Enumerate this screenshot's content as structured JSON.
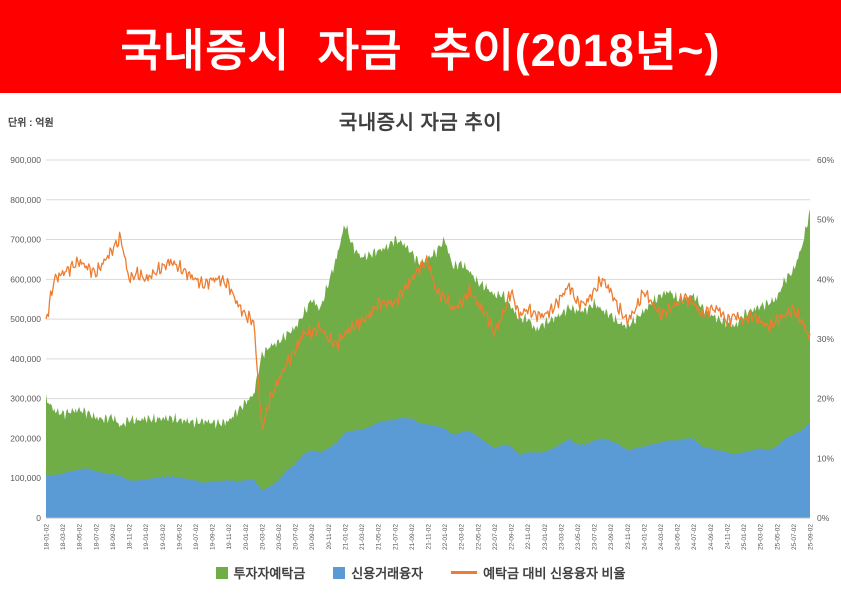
{
  "banner": {
    "title": "국내증시 자금 추이(2018년~)",
    "bg_color": "#fe0000",
    "text_color": "#ffffff"
  },
  "chart": {
    "title": "국내증시 자금 추이",
    "unit_label": "단위 : 억원"
  },
  "legend": [
    {
      "label": "투자자예탁금",
      "color": "#70ad47",
      "type": "area"
    },
    {
      "label": "신용거래융자",
      "color": "#5b9bd5",
      "type": "area"
    },
    {
      "label": "예탁금 대비 신용융자 비율",
      "color": "#ed7d31",
      "type": "line"
    }
  ],
  "chart_data": {
    "type": "area",
    "title": "국내증시 자금 추이",
    "unit": "억원",
    "x_start": "2018-01",
    "x_end": "2025-09",
    "x_freq": "monthly",
    "x_points": 93,
    "x_tick_labels": [
      "18-01-02",
      "18-03-02",
      "18-05-02",
      "18-07-02",
      "18-09-02",
      "18-11-02",
      "19-01-02",
      "19-03-02",
      "19-05-02",
      "19-07-02",
      "19-09-02",
      "19-11-02",
      "20-01-02",
      "20-03-02",
      "20-05-02",
      "20-07-02",
      "20-09-02",
      "20-11-02",
      "21-01-02",
      "21-03-02",
      "21-05-02",
      "21-07-02",
      "21-09-02",
      "21-11-02",
      "22-01-02",
      "22-03-02",
      "22-05-02",
      "22-07-02",
      "22-09-02",
      "22-11-02",
      "23-01-02",
      "23-03-02",
      "23-05-02",
      "23-07-02",
      "23-09-02",
      "23-11-02",
      "24-01-02",
      "24-03-02",
      "24-05-02",
      "24-07-02",
      "24-09-02",
      "24-11-02",
      "25-01-02",
      "25-03-02",
      "25-05-02",
      "25-07-02",
      "25-09-02"
    ],
    "left_axis": {
      "min": 0,
      "max": 900000,
      "tick_labels": [
        "0",
        "100,000",
        "200,000",
        "300,000",
        "400,000",
        "500,000",
        "600,000",
        "700,000",
        "800,000",
        "900,000"
      ]
    },
    "right_axis": {
      "min": 0,
      "max": 60,
      "tick_labels": [
        "0%",
        "10%",
        "20%",
        "30%",
        "40%",
        "50%",
        "60%"
      ]
    },
    "grid": true,
    "legend_position": "bottom",
    "series": [
      {
        "name": "투자자예탁금",
        "type": "area",
        "axis": "left",
        "color": "#70ad47",
        "values": [
          300000,
          270000,
          262000,
          268000,
          272000,
          265000,
          252000,
          248000,
          255000,
          230000,
          248000,
          245000,
          250000,
          248000,
          250000,
          252000,
          246000,
          244000,
          240000,
          244000,
          240000,
          238000,
          244000,
          268000,
          290000,
          310000,
          410000,
          432000,
          442000,
          462000,
          478000,
          512000,
          550000,
          524000,
          590000,
          655000,
          740000,
          680000,
          655000,
          662000,
          672000,
          680000,
          700000,
          690000,
          668000,
          640000,
          652000,
          670000,
          700000,
          632000,
          640000,
          620000,
          592000,
          580000,
          560000,
          562000,
          532000,
          500000,
          502000,
          472000,
          490000,
          500000,
          512000,
          530000,
          520000,
          522000,
          540000,
          522000,
          510000,
          490000,
          482000,
          500000,
          520000,
          542000,
          560000,
          570000,
          552000,
          550000,
          560000,
          530000,
          512000,
          500000,
          490000,
          482000,
          512000,
          522000,
          532000,
          540000,
          552000,
          600000,
          622000,
          680000,
          772000
        ]
      },
      {
        "name": "신용거래융자",
        "type": "area",
        "axis": "left",
        "color": "#5b9bd5",
        "values": [
          105000,
          108000,
          112000,
          118000,
          122000,
          125000,
          118000,
          112000,
          110000,
          106000,
          94000,
          94000,
          97000,
          100000,
          103000,
          105000,
          102000,
          98000,
          95000,
          88000,
          92000,
          93000,
          95000,
          92000,
          95000,
          98000,
          70000,
          80000,
          95000,
          120000,
          135000,
          160000,
          170000,
          165000,
          175000,
          190000,
          215000,
          220000,
          222000,
          230000,
          240000,
          245000,
          248000,
          252000,
          250000,
          238000,
          235000,
          232000,
          225000,
          210000,
          215000,
          220000,
          205000,
          190000,
          175000,
          185000,
          180000,
          160000,
          165000,
          165000,
          165000,
          175000,
          185000,
          200000,
          185000,
          185000,
          195000,
          200000,
          195000,
          185000,
          170000,
          175000,
          180000,
          185000,
          190000,
          195000,
          195000,
          200000,
          200000,
          180000,
          175000,
          170000,
          165000,
          160000,
          165000,
          170000,
          175000,
          170000,
          180000,
          200000,
          210000,
          220000,
          240000
        ]
      },
      {
        "name": "예탁금 대비 신용융자 비율",
        "type": "line",
        "axis": "right",
        "color": "#ed7d31",
        "values": [
          33,
          40,
          41,
          42,
          43,
          42,
          41,
          43,
          45,
          47,
          40,
          41,
          40,
          41,
          42,
          43,
          42,
          41,
          40,
          39,
          40,
          40,
          39,
          36,
          34,
          33,
          15,
          20,
          23,
          26,
          28,
          31,
          31,
          32,
          30,
          29,
          31,
          32,
          33,
          34,
          36,
          36,
          36,
          38,
          40,
          42,
          43,
          38,
          37,
          35,
          36,
          38,
          36,
          34,
          31,
          34,
          38,
          34,
          35,
          34,
          34,
          35,
          37,
          39,
          36,
          36,
          38,
          40,
          38,
          35,
          33,
          35,
          38,
          36,
          34,
          35,
          36,
          37,
          36,
          34,
          35,
          35,
          33,
          34,
          33,
          34,
          33,
          32,
          33,
          34,
          35,
          33,
          30
        ]
      }
    ]
  }
}
